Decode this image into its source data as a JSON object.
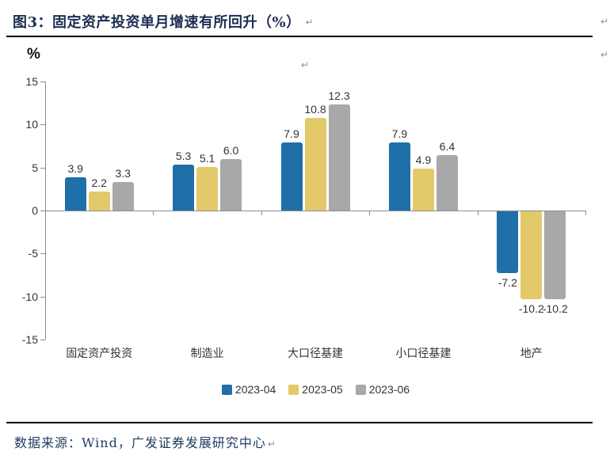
{
  "document": {
    "title": "图3：固定资产投资单月增速有所回升（%）",
    "source_note": "数据来源：Wind，广发证券发展研究中心",
    "paragraph_mark": "↵"
  },
  "chart_data": {
    "type": "bar",
    "title": "固定资产投资单月增速有所回升（%）",
    "ylabel": "%",
    "xlabel": "",
    "ylim": [
      -15,
      15
    ],
    "ytick_step": 5,
    "grid": false,
    "legend_position": "bottom",
    "value_labels": true,
    "categories": [
      "固定资产投资",
      "制造业",
      "大口径基建",
      "小口径基建",
      "地产"
    ],
    "series": [
      {
        "name": "2023-04",
        "color": "#1F6FA8",
        "values": [
          3.9,
          5.3,
          7.9,
          7.9,
          -7.2
        ]
      },
      {
        "name": "2023-05",
        "color": "#E4C96B",
        "values": [
          2.2,
          5.1,
          10.8,
          4.9,
          -10.2
        ]
      },
      {
        "name": "2023-06",
        "color": "#A8A8A8",
        "values": [
          3.3,
          6.0,
          12.3,
          6.4,
          -10.2
        ]
      }
    ]
  },
  "colors": {
    "title_text": "#1C2E52",
    "source_text": "#1F3A5F",
    "rule_line": "#000000",
    "axis": "#8C8C8C",
    "chart_text": "#333333"
  }
}
